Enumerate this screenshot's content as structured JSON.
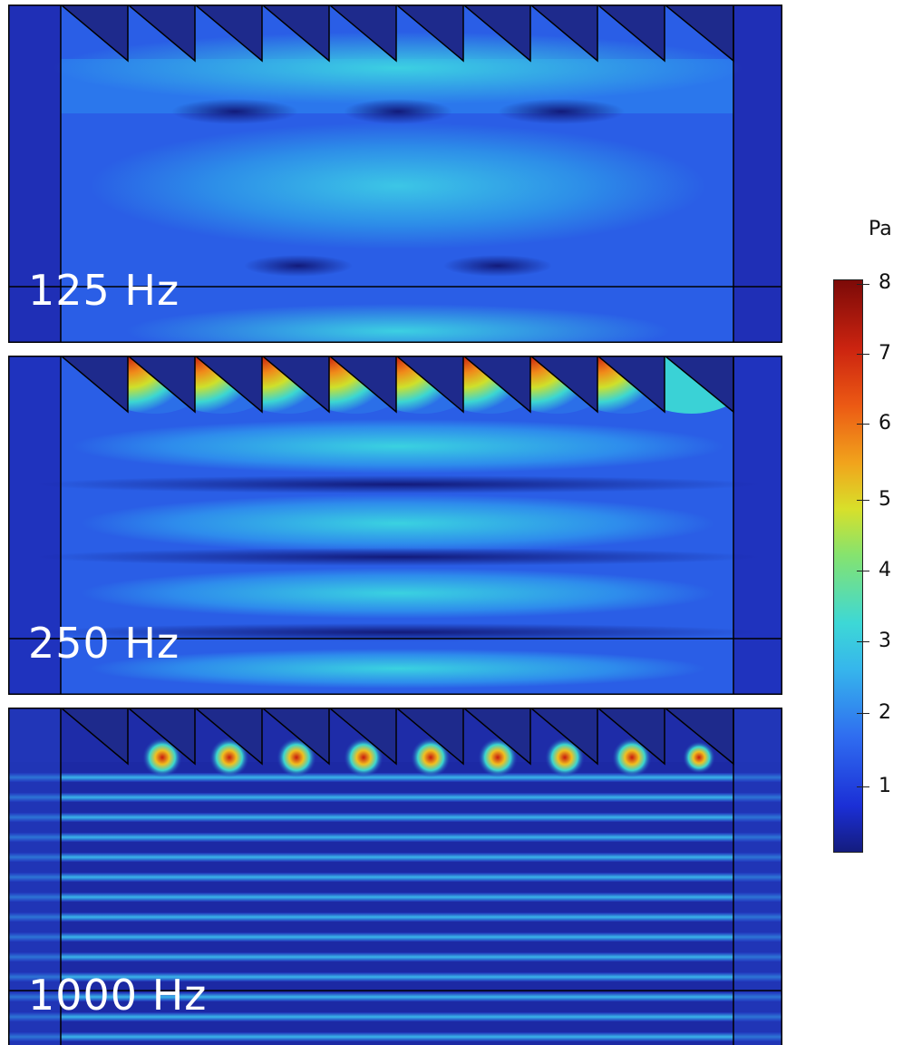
{
  "panels": [
    {
      "label": "125 Hz"
    },
    {
      "label": "250 Hz"
    },
    {
      "label": "1000 Hz"
    }
  ],
  "colorbar": {
    "unit": "Pa",
    "ticks": [
      "8",
      "7",
      "6",
      "5",
      "4",
      "3",
      "2",
      "1"
    ],
    "min": 0,
    "max": 8.2,
    "colormap": [
      "#141c7e",
      "#1b2fd6",
      "#2f6cf0",
      "#36b6ec",
      "#3dd8d6",
      "#86e36e",
      "#d8e02a",
      "#f1a41c",
      "#ec5a14",
      "#cc2410",
      "#7c0a08"
    ]
  }
}
